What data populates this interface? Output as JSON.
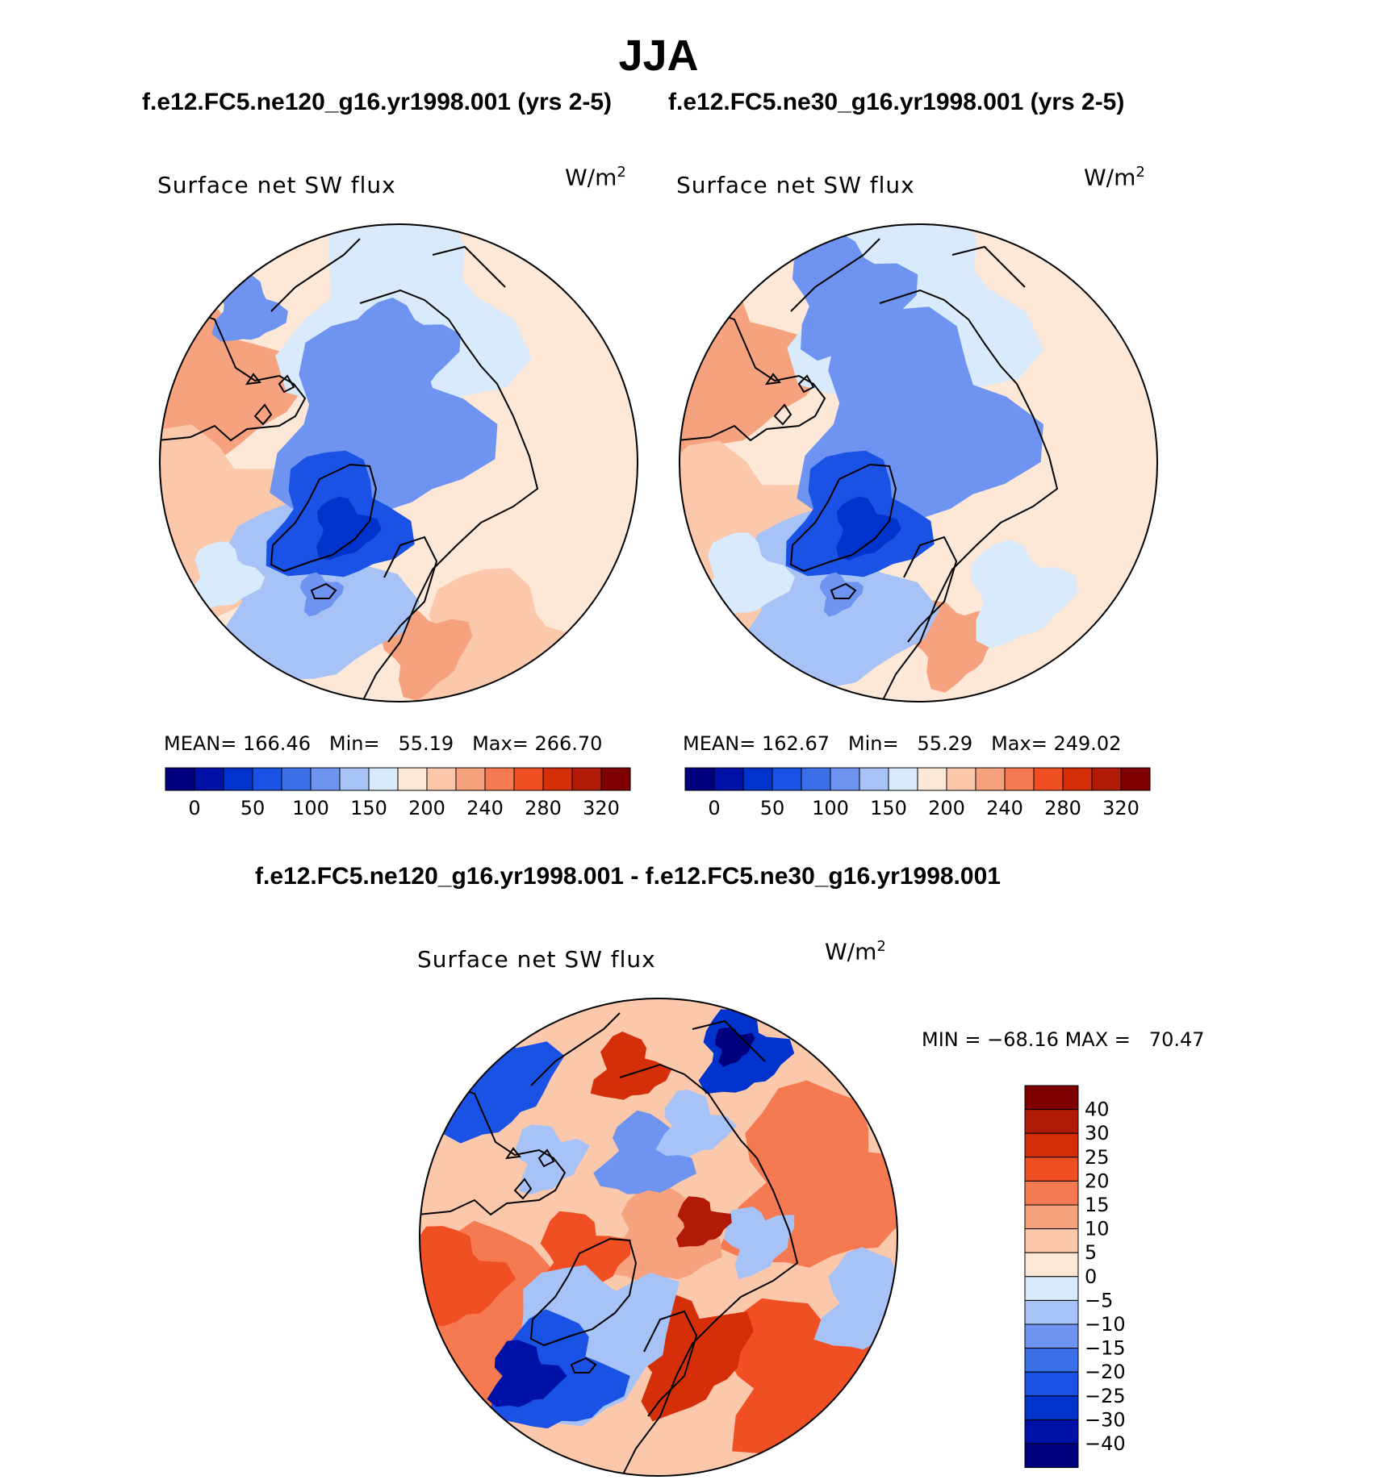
{
  "figure": {
    "title": "JJA",
    "top_left_case": "f.e12.FC5.ne120_g16.yr1998.001 (yrs 2-5)",
    "top_right_case": "f.e12.FC5.ne30_g16.yr1998.001 (yrs 2-5)",
    "diff_title": "f.e12.FC5.ne120_g16.yr1998.001 - f.e12.FC5.ne30_g16.yr1998.001"
  },
  "chart_data": [
    {
      "type": "heatmap",
      "projection": "north polar stereographic",
      "title": "Surface net SW flux",
      "units": "W/m",
      "units_exp": "2",
      "stats": {
        "mean_label": "MEAN=",
        "mean": "166.46",
        "min_label": "Min=",
        "min": "55.19",
        "max_label": "Max=",
        "max": "266.70"
      },
      "colorbar": {
        "orientation": "horizontal",
        "tick_labels": [
          "0",
          "50",
          "100",
          "150",
          "200",
          "240",
          "280",
          "320"
        ],
        "colors": [
          "#00007f",
          "#0011a8",
          "#0033cc",
          "#1a52e6",
          "#3b6fe8",
          "#6e93f0",
          "#a7c2f7",
          "#d8eafc",
          "#fde8d7",
          "#fbc8ab",
          "#f7a27f",
          "#f57a52",
          "#f04e23",
          "#d52f0a",
          "#b01a06",
          "#7f0000"
        ]
      }
    },
    {
      "type": "heatmap",
      "projection": "north polar stereographic",
      "title": "Surface net SW flux",
      "units": "W/m",
      "units_exp": "2",
      "stats": {
        "mean_label": "MEAN=",
        "mean": "162.67",
        "min_label": "Min=",
        "min": "55.29",
        "max_label": "Max=",
        "max": "249.02"
      },
      "colorbar": {
        "orientation": "horizontal",
        "tick_labels": [
          "0",
          "50",
          "100",
          "150",
          "200",
          "240",
          "280",
          "320"
        ],
        "colors": [
          "#00007f",
          "#0011a8",
          "#0033cc",
          "#1a52e6",
          "#3b6fe8",
          "#6e93f0",
          "#a7c2f7",
          "#d8eafc",
          "#fde8d7",
          "#fbc8ab",
          "#f7a27f",
          "#f57a52",
          "#f04e23",
          "#d52f0a",
          "#b01a06",
          "#7f0000"
        ]
      }
    },
    {
      "type": "heatmap",
      "projection": "north polar stereographic",
      "title": "Surface net SW flux",
      "units": "W/m",
      "units_exp": "2",
      "stats": {
        "min_label": "MIN =",
        "min": "−68.16",
        "max_label": "MAX =",
        "max": "70.47"
      },
      "colorbar": {
        "orientation": "vertical",
        "tick_labels": [
          "40",
          "30",
          "25",
          "20",
          "15",
          "10",
          "5",
          "0",
          "−5",
          "−10",
          "−15",
          "−20",
          "−25",
          "−30",
          "−40"
        ],
        "colors": [
          "#7f0000",
          "#b01a06",
          "#d52f0a",
          "#f04e23",
          "#f57a52",
          "#f7a27f",
          "#fbc8ab",
          "#fde8d7",
          "#d8eafc",
          "#a7c2f7",
          "#6e93f0",
          "#3b6fe8",
          "#1a52e6",
          "#0033cc",
          "#0011a8",
          "#00007f"
        ]
      }
    }
  ]
}
